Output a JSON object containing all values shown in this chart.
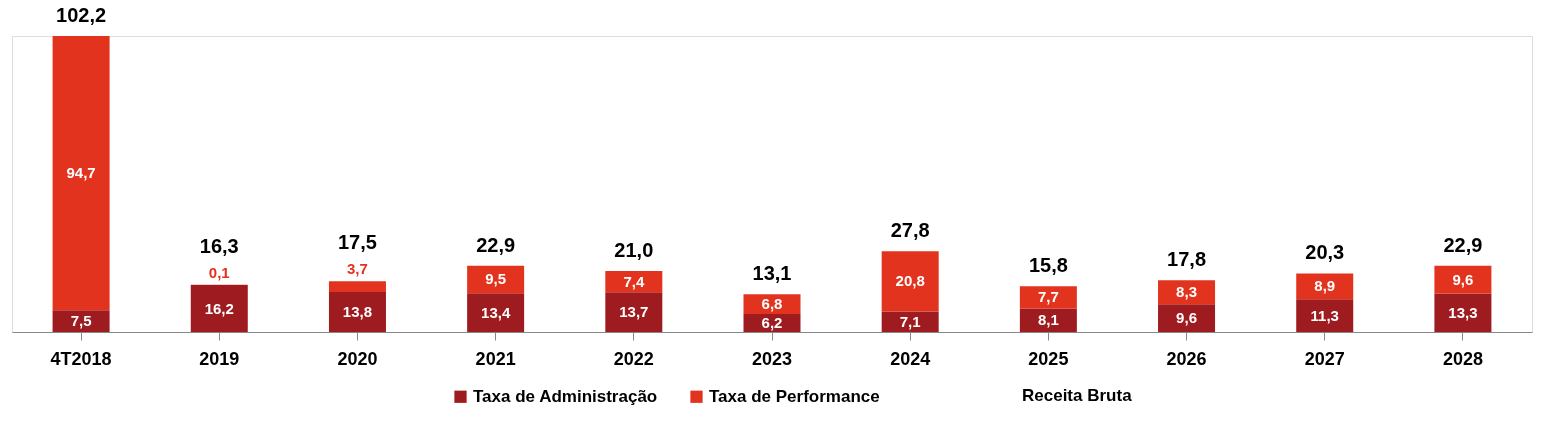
{
  "chart_data": {
    "type": "bar",
    "stacked": true,
    "legend": "bottom",
    "grid": false,
    "categories": [
      "4T2018",
      "2019",
      "2020",
      "2021",
      "2022",
      "2023",
      "2024",
      "2025",
      "2026",
      "2027",
      "2028"
    ],
    "series": [
      {
        "name": "Taxa de Administração",
        "color": "#9e1b20",
        "values": [
          7.5,
          16.2,
          13.8,
          13.4,
          13.7,
          6.2,
          7.1,
          8.1,
          9.6,
          11.3,
          13.3
        ],
        "value_labels": [
          "7,5",
          "16,2",
          "13,8",
          "13,4",
          "13,7",
          "6,2",
          "7,1",
          "8,1",
          "9,6",
          "11,3",
          "13,3"
        ]
      },
      {
        "name": "Taxa de Performance",
        "color": "#e2331f",
        "values": [
          94.7,
          0.1,
          3.7,
          9.5,
          7.4,
          6.8,
          20.8,
          7.7,
          8.3,
          8.9,
          9.6
        ],
        "value_labels": [
          "94,7",
          "0,1",
          "3,7",
          "9,5",
          "7,4",
          "6,8",
          "20,8",
          "7,7",
          "8,3",
          "8,9",
          "9,6"
        ]
      }
    ],
    "totals": [
      "102,2",
      "16,3",
      "17,5",
      "22,9",
      "21,0",
      "13,1",
      "27,8",
      "15,8",
      "17,8",
      "20,3",
      "22,9"
    ],
    "annotations": [
      "Receita Bruta"
    ]
  }
}
